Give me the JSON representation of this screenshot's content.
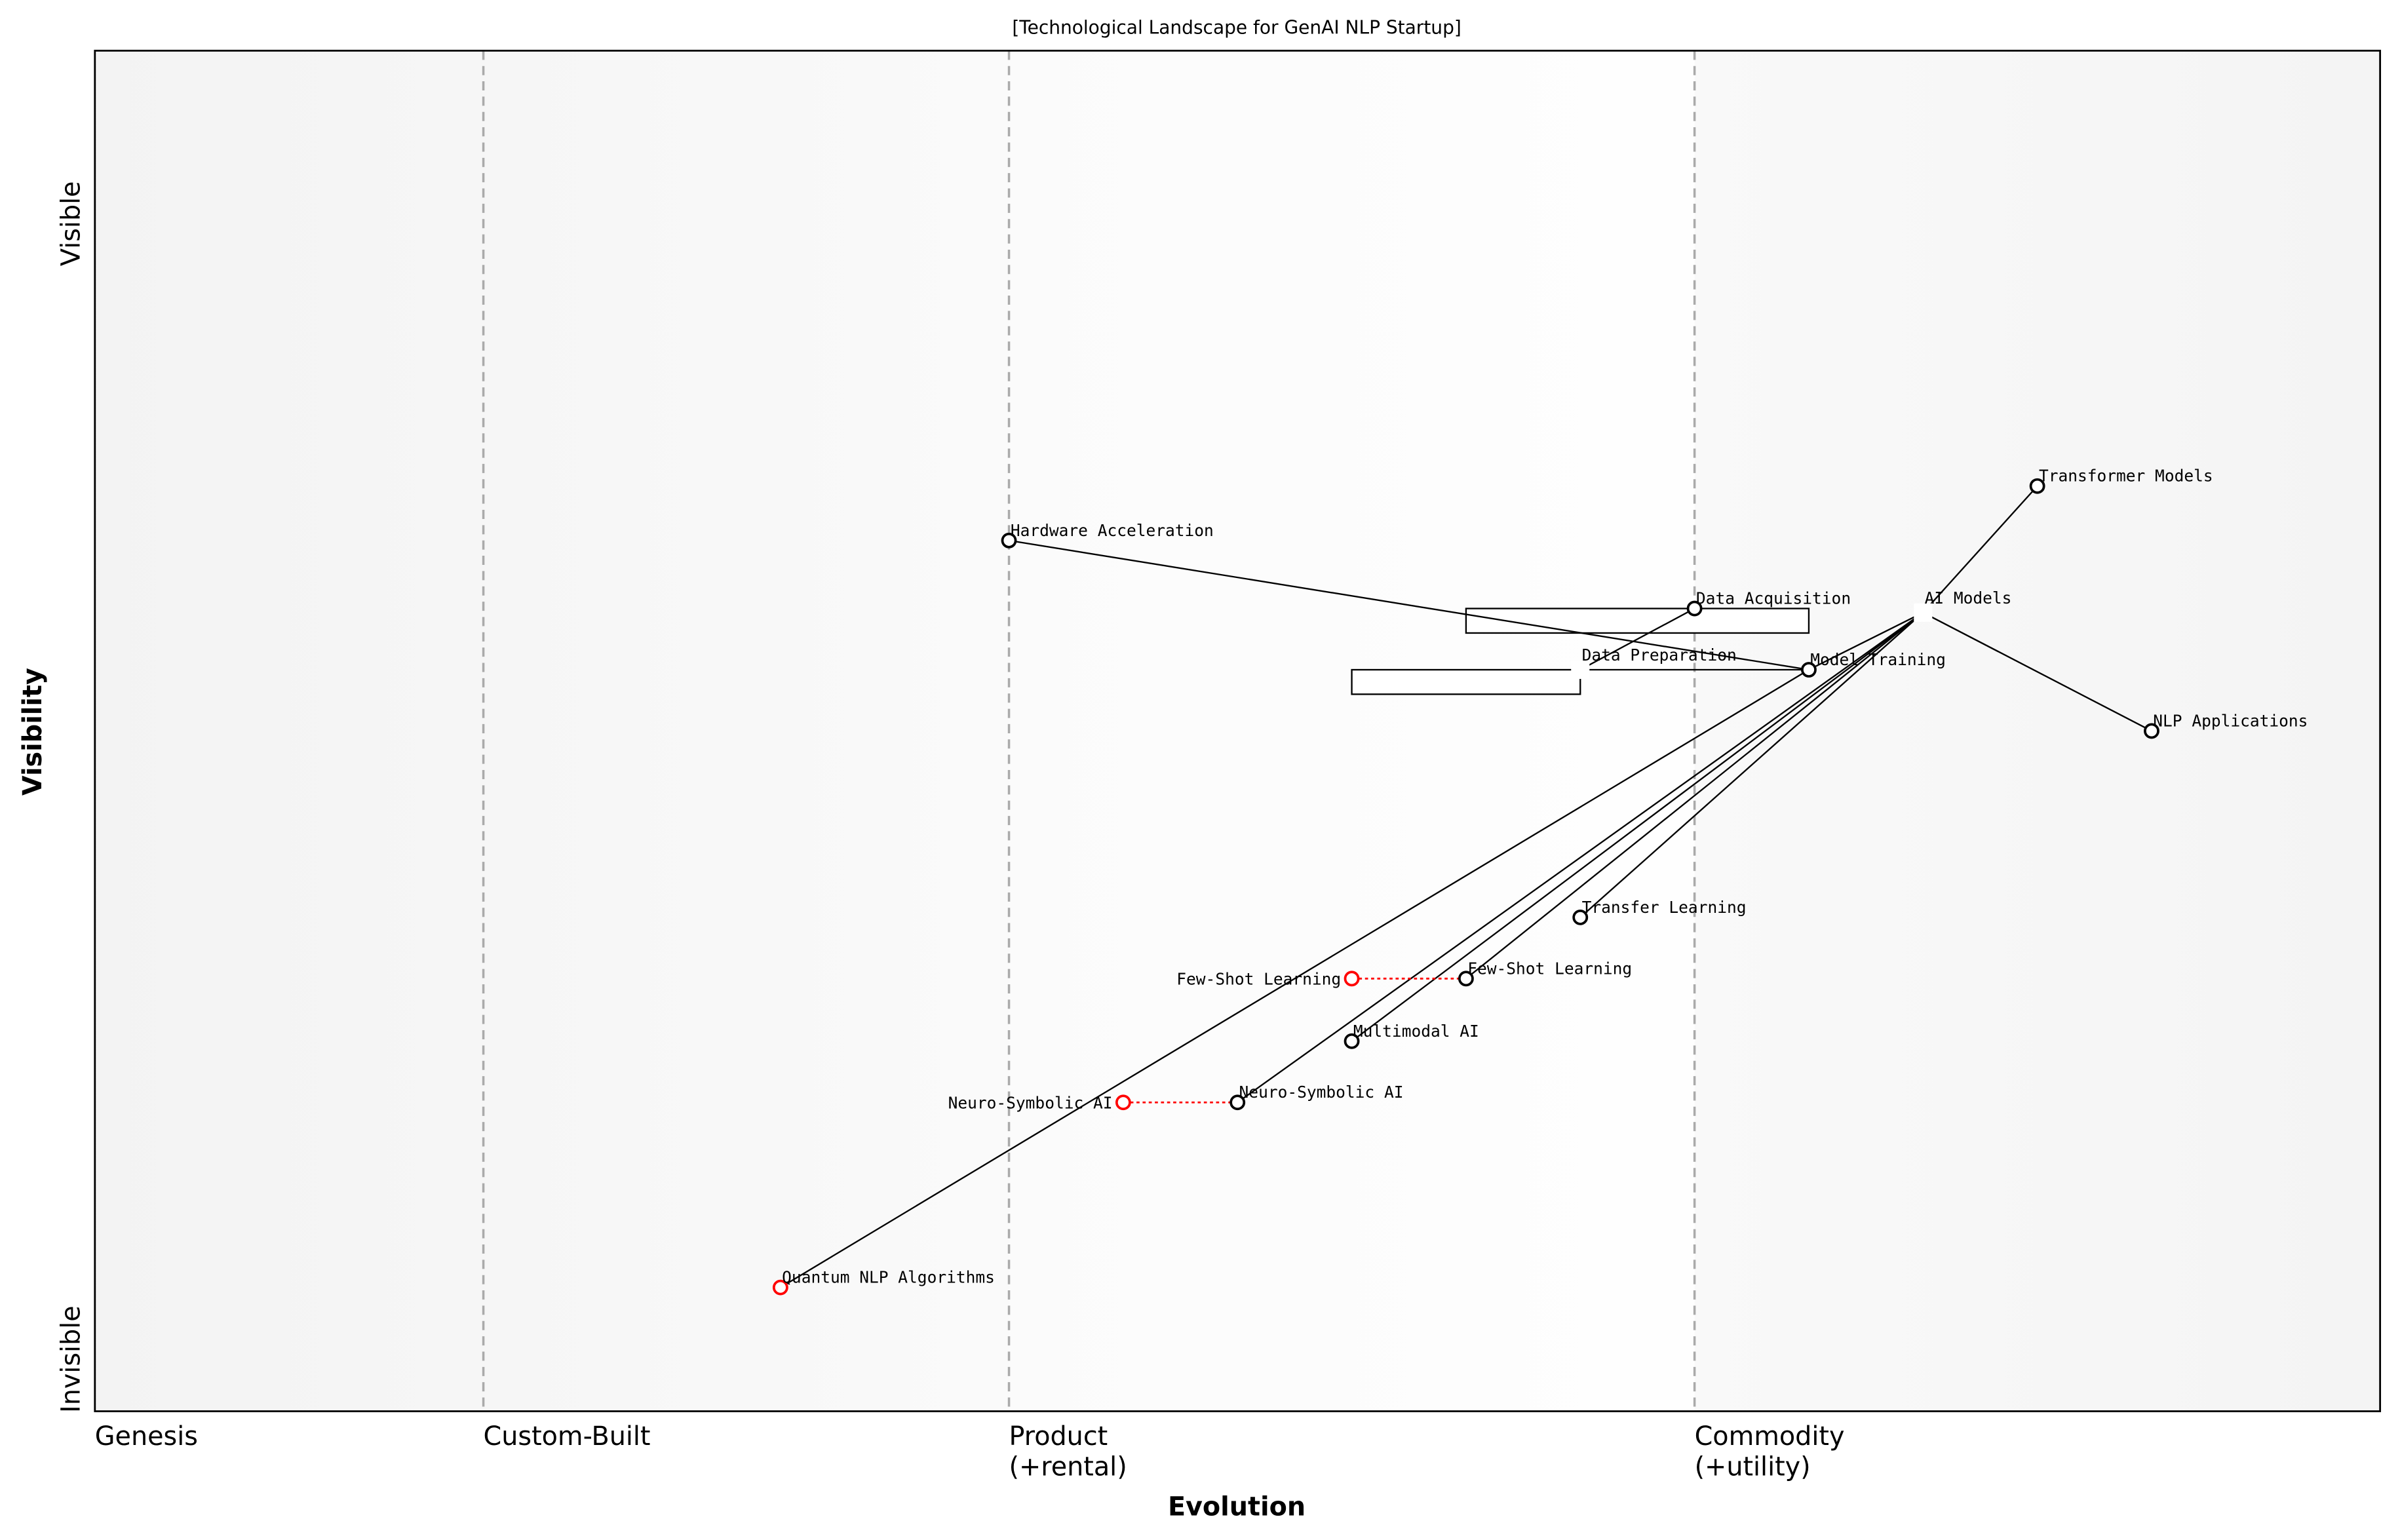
{
  "title": "[Technological Landscape for GenAI NLP Startup]",
  "axes": {
    "xlabel": "Evolution",
    "ylabel": "Visibility",
    "y_top": "Visible",
    "y_bottom": "Invisible",
    "stages": [
      {
        "label": "Genesis",
        "at": 0.0
      },
      {
        "label": "Custom-Built",
        "at": 0.17
      },
      {
        "label": "Product",
        "sub": "(+rental)",
        "at": 0.4
      },
      {
        "label": "Commodity",
        "sub": "(+utility)",
        "at": 0.7
      }
    ]
  },
  "components": [
    {
      "id": "hw",
      "label": "Hardware Acceleration",
      "evolution": 0.4,
      "visibility": 0.64
    },
    {
      "id": "da",
      "label": "Data Acquisition",
      "evolution": 0.7,
      "visibility": 0.59
    },
    {
      "id": "mt",
      "label": "Model Training",
      "evolution": 0.75,
      "visibility": 0.545
    },
    {
      "id": "tm",
      "label": "Transformer Models",
      "evolution": 0.85,
      "visibility": 0.68
    },
    {
      "id": "nlp",
      "label": "NLP Applications",
      "evolution": 0.9,
      "visibility": 0.5
    },
    {
      "id": "tl",
      "label": "Transfer Learning",
      "evolution": 0.65,
      "visibility": 0.363
    },
    {
      "id": "fsl",
      "label": "Few-Shot Learning",
      "evolution": 0.6,
      "visibility": 0.318
    },
    {
      "id": "mm",
      "label": "Multimodal AI",
      "evolution": 0.55,
      "visibility": 0.272
    },
    {
      "id": "ns",
      "label": "Neuro-Symbolic AI",
      "evolution": 0.5,
      "visibility": 0.227
    }
  ],
  "anchors_no_marker": [
    {
      "id": "ai",
      "label": "AI Models",
      "evolution": 0.8,
      "visibility": 0.587
    },
    {
      "id": "dp",
      "label": "Data Preparation",
      "evolution": 0.65,
      "visibility": 0.545
    }
  ],
  "evolving": [
    {
      "id": "qnlp",
      "label": "Quantum NLP Algorithms",
      "evolution": 0.3,
      "visibility": 0.091,
      "from": null
    },
    {
      "id": "fsl_e",
      "label": "Few-Shot Learning",
      "evolution": 0.55,
      "visibility": 0.318,
      "from": "fsl"
    },
    {
      "id": "ns_e",
      "label": "Neuro-Symbolic AI",
      "evolution": 0.45,
      "visibility": 0.227,
      "from": "ns"
    }
  ],
  "pipelines": [
    {
      "component": "da",
      "start": 0.6,
      "end": 0.75
    },
    {
      "component": "dp",
      "start": 0.55,
      "end": 0.65
    }
  ],
  "links": [
    [
      "hw",
      "mt"
    ],
    [
      "da",
      "dp"
    ],
    [
      "dp",
      "mt"
    ],
    [
      "mt",
      "qnlp"
    ],
    [
      "ai",
      "tm"
    ],
    [
      "ai",
      "nlp"
    ],
    [
      "ai",
      "mt"
    ],
    [
      "ai",
      "tl"
    ],
    [
      "ai",
      "fsl"
    ],
    [
      "ai",
      "mm"
    ],
    [
      "ai",
      "ns"
    ]
  ],
  "colors": {
    "component": "#000000",
    "evolving": "#ff0000",
    "stage_line": "#aaaaaa"
  }
}
